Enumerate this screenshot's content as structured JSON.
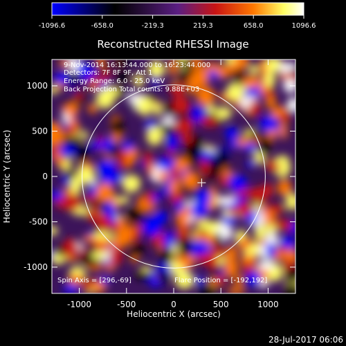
{
  "title": "Reconstructed RHESSI Image",
  "colorbar": {
    "ticks": [
      "-1096.6",
      "-658.0",
      "-219.3",
      "219.3",
      "658.0",
      "1096.6"
    ],
    "range": [
      -1096.6,
      1096.6
    ],
    "colormap": [
      "#0000ff",
      "#000000",
      "#5a1e82",
      "#c81414",
      "#ff7800",
      "#ffff64",
      "#ffffff"
    ]
  },
  "axes": {
    "xlabel": "Heliocentric X (arcsec)",
    "ylabel": "Heliocentric Y (arcsec)",
    "xticks": [
      "-1000",
      "-500",
      "0",
      "500",
      "1000"
    ],
    "yticks": [
      "1000",
      "500",
      "0",
      "-500",
      "-1000"
    ],
    "xlim": [
      -1290,
      1290
    ],
    "ylim": [
      -1290,
      1290
    ]
  },
  "info": {
    "time_range": "9-Nov-2014 16:13:44.000 to 16:23:44.000",
    "detectors": "Detectors: 7F 8F 9F, Att 1",
    "energy": "Energy Range: 6.0 - 25.0 keV",
    "method": "Back Projection    Total counts: 9.88E+03",
    "spin_axis": "Spin Axis = [296,-69]",
    "flare_position": "Flare Position = [-192,192]"
  },
  "solar_disk": {
    "center": [
      0,
      0
    ],
    "radius": 970
  },
  "crosshair": [
    296,
    -69
  ],
  "footer_date": "28-Jul-2017 06:06"
}
